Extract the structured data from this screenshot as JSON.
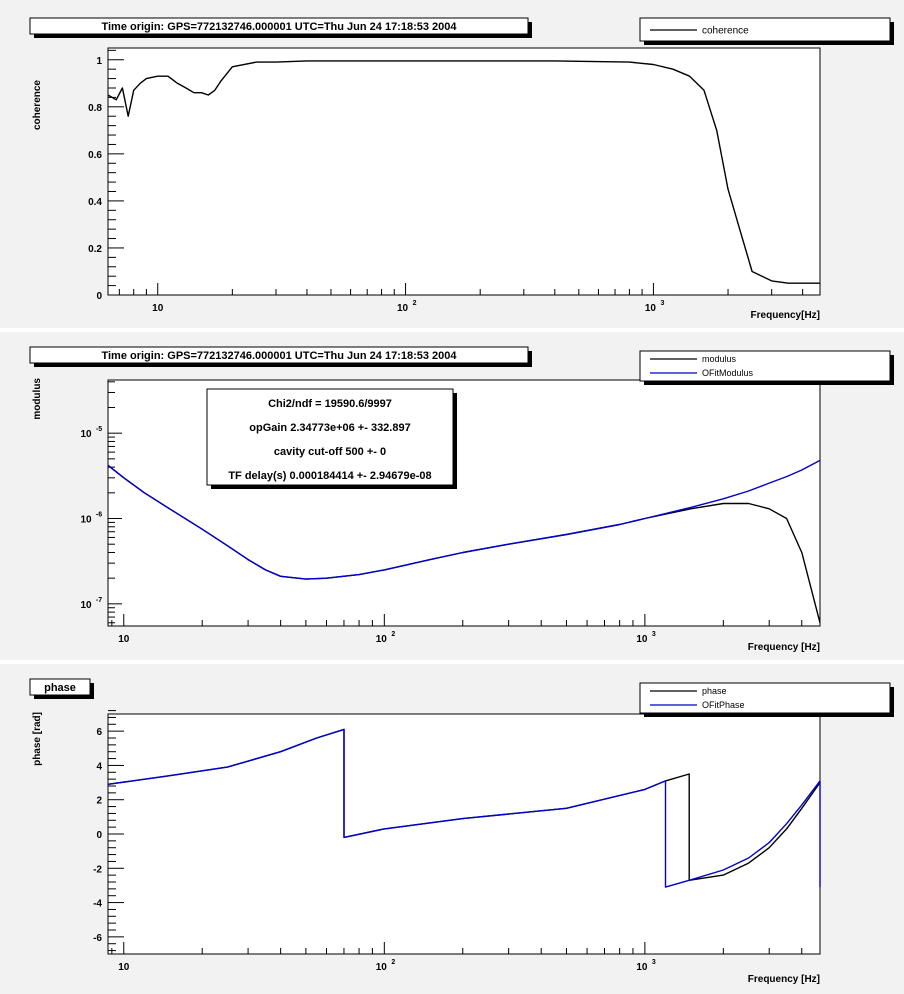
{
  "colors": {
    "data": "#000000",
    "fit": "#0000cc",
    "background": "#ffffff",
    "panel": "#f2f2f2",
    "shadow": "#000000"
  },
  "chart_data": [
    {
      "type": "line",
      "title": "Time origin: GPS=772132746.000001 UTC=Thu Jun 24 17:18:53 2004",
      "xlabel": "Frequency[Hz]",
      "ylabel": "coherence",
      "xscale": "log",
      "yscale": "linear",
      "xlim": [
        6.3,
        4700
      ],
      "ylim": [
        0,
        1.05
      ],
      "xticks": [
        {
          "v": 10,
          "m": "10",
          "e": ""
        },
        {
          "v": 100,
          "m": "10",
          "e": "2"
        },
        {
          "v": 1000,
          "m": "10",
          "e": "3"
        }
      ],
      "yticks": [
        {
          "v": 0,
          "label": "0"
        },
        {
          "v": 0.2,
          "label": "0.2"
        },
        {
          "v": 0.4,
          "label": "0.4"
        },
        {
          "v": 0.6,
          "label": "0.6"
        },
        {
          "v": 0.8,
          "label": "0.8"
        },
        {
          "v": 1,
          "label": "1"
        }
      ],
      "legend": {
        "position": "top-right",
        "entries": [
          "coherence"
        ]
      },
      "series": [
        {
          "name": "coherence",
          "color": "#000000",
          "x": [
            6.3,
            6.8,
            7.2,
            7.6,
            8.0,
            8.5,
            9,
            10,
            11,
            12,
            13,
            14,
            15,
            16,
            17,
            18,
            20,
            25,
            30,
            40,
            60,
            100,
            200,
            400,
            800,
            1000,
            1200,
            1400,
            1600,
            1800,
            2000,
            2200,
            2500,
            3000,
            3500,
            4000,
            4700
          ],
          "y": [
            0.85,
            0.83,
            0.88,
            0.76,
            0.87,
            0.9,
            0.92,
            0.93,
            0.93,
            0.9,
            0.88,
            0.86,
            0.86,
            0.85,
            0.87,
            0.91,
            0.97,
            0.99,
            0.99,
            0.995,
            0.995,
            0.995,
            0.995,
            0.995,
            0.99,
            0.98,
            0.96,
            0.93,
            0.87,
            0.7,
            0.45,
            0.3,
            0.1,
            0.06,
            0.05,
            0.05,
            0.05
          ]
        }
      ]
    },
    {
      "type": "line",
      "title": "Time origin: GPS=772132746.000001 UTC=Thu Jun 24 17:18:53 2004",
      "xlabel": "Frequency [Hz]",
      "ylabel": "modulus",
      "xscale": "log",
      "yscale": "log",
      "xlim": [
        8.7,
        4700
      ],
      "ylim": [
        5.5e-08,
        4.2e-05
      ],
      "xticks": [
        {
          "v": 10,
          "m": "10",
          "e": ""
        },
        {
          "v": 100,
          "m": "10",
          "e": "2"
        },
        {
          "v": 1000,
          "m": "10",
          "e": "3"
        }
      ],
      "yticks": [
        {
          "v": 1e-07,
          "m": "10",
          "e": "-7"
        },
        {
          "v": 1e-06,
          "m": "10",
          "e": "-6"
        },
        {
          "v": 1e-05,
          "m": "10",
          "e": "-5"
        }
      ],
      "legend": {
        "position": "top-right",
        "entries": [
          "modulus",
          "OFitModulus"
        ]
      },
      "stats_box": [
        "Chi2/ndf = 19590.6/9997",
        "opGain 2.34773e+06 +- 332.897",
        "cavity cut-off 500 +- 0",
        "TF delay(s) 0.000184414 +- 2.94679e-08"
      ],
      "series": [
        {
          "name": "modulus",
          "color": "#000000",
          "x": [
            8.7,
            10,
            12,
            15,
            20,
            25,
            30,
            35,
            40,
            50,
            60,
            80,
            100,
            150,
            200,
            300,
            500,
            800,
            1000,
            1500,
            2000,
            2500,
            3000,
            3500,
            4000,
            4700
          ],
          "y": [
            4.2e-06,
            3e-06,
            2e-06,
            1.3e-06,
            7.5e-07,
            4.8e-07,
            3.3e-07,
            2.5e-07,
            2.1e-07,
            1.95e-07,
            2e-07,
            2.2e-07,
            2.5e-07,
            3.3e-07,
            4e-07,
            5e-07,
            6.5e-07,
            8.5e-07,
            1e-06,
            1.3e-06,
            1.5e-06,
            1.5e-06,
            1.3e-06,
            1e-06,
            4e-07,
            6e-08
          ]
        },
        {
          "name": "OFitModulus",
          "color": "#0000cc",
          "x": [
            8.7,
            10,
            12,
            15,
            20,
            25,
            30,
            35,
            40,
            50,
            60,
            80,
            100,
            150,
            200,
            300,
            500,
            800,
            1000,
            1500,
            2000,
            2500,
            3000,
            3500,
            4000,
            4700
          ],
          "y": [
            4.2e-06,
            3e-06,
            2e-06,
            1.3e-06,
            7.5e-07,
            4.8e-07,
            3.3e-07,
            2.5e-07,
            2.1e-07,
            1.95e-07,
            2e-07,
            2.2e-07,
            2.5e-07,
            3.3e-07,
            4e-07,
            5e-07,
            6.5e-07,
            8.5e-07,
            1e-06,
            1.35e-06,
            1.7e-06,
            2.1e-06,
            2.6e-06,
            3.1e-06,
            3.7e-06,
            4.8e-06
          ]
        }
      ]
    },
    {
      "type": "line",
      "title": "phase",
      "xlabel": "Frequency [Hz]",
      "ylabel": "phase [rad]",
      "xscale": "log",
      "yscale": "linear",
      "xlim": [
        8.7,
        4700
      ],
      "ylim": [
        -7,
        7
      ],
      "xticks": [
        {
          "v": 10,
          "m": "10",
          "e": ""
        },
        {
          "v": 100,
          "m": "10",
          "e": "2"
        },
        {
          "v": 1000,
          "m": "10",
          "e": "3"
        }
      ],
      "yticks": [
        {
          "v": -6,
          "label": "-6"
        },
        {
          "v": -4,
          "label": "-4"
        },
        {
          "v": -2,
          "label": "-2"
        },
        {
          "v": 0,
          "label": "0"
        },
        {
          "v": 2,
          "label": "2"
        },
        {
          "v": 4,
          "label": "4"
        },
        {
          "v": 6,
          "label": "6"
        }
      ],
      "legend": {
        "position": "top-right",
        "entries": [
          "phase",
          "OFitPhase"
        ]
      },
      "series": [
        {
          "name": "phase",
          "color": "#000000",
          "x": [
            8.7,
            15,
            25,
            40,
            55,
            70,
            70.01,
            100,
            200,
            500,
            1000,
            1200,
            1480,
            1480.01,
            2000,
            2500,
            3000,
            3500,
            4000,
            4700
          ],
          "y": [
            2.9,
            3.4,
            3.9,
            4.8,
            5.6,
            6.1,
            -0.2,
            0.3,
            0.9,
            1.5,
            2.6,
            3.1,
            3.5,
            -2.7,
            -2.4,
            -1.7,
            -0.8,
            0.3,
            1.5,
            3.0
          ]
        },
        {
          "name": "OFitPhase",
          "color": "#0000cc",
          "x": [
            8.7,
            15,
            25,
            40,
            55,
            70,
            70.01,
            100,
            200,
            500,
            1000,
            1200,
            1200.01,
            1480,
            1480.01,
            2000,
            2500,
            3000,
            3500,
            4000,
            4700,
            4700.01
          ],
          "y": [
            2.9,
            3.4,
            3.9,
            4.8,
            5.6,
            6.1,
            -0.2,
            0.3,
            0.9,
            1.5,
            2.6,
            3.1,
            -3.1,
            -2.7,
            -2.7,
            -2.1,
            -1.4,
            -0.5,
            0.6,
            1.7,
            3.1,
            -3.1
          ]
        }
      ]
    }
  ]
}
